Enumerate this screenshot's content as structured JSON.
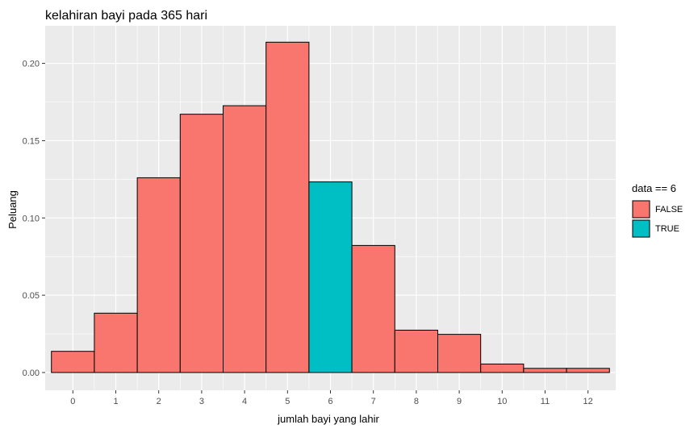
{
  "chart_data": {
    "type": "bar",
    "title": "kelahiran bayi pada 365 hari",
    "xlabel": "jumlah bayi yang lahir",
    "ylabel": "Peluang",
    "categories": [
      "0",
      "1",
      "2",
      "3",
      "4",
      "5",
      "6",
      "7",
      "8",
      "9",
      "10",
      "11",
      "12"
    ],
    "values": [
      0.0137,
      0.0384,
      0.126,
      0.1671,
      0.1726,
      0.2137,
      0.1233,
      0.0822,
      0.0274,
      0.0247,
      0.0055,
      0.0027,
      0.0027
    ],
    "highlight": [
      false,
      false,
      false,
      false,
      false,
      false,
      true,
      false,
      false,
      false,
      false,
      false,
      false
    ],
    "ylim": [
      -0.0115,
      0.2243
    ],
    "yticks": [
      "0.00",
      "0.05",
      "0.10",
      "0.15",
      "0.20"
    ],
    "ytick_values": [
      0,
      0.05,
      0.1,
      0.15,
      0.2
    ],
    "grid": true,
    "legend": {
      "title": "data == 6",
      "position": "right",
      "items": [
        {
          "label": "FALSE",
          "color": "#F8766D"
        },
        {
          "label": "TRUE",
          "color": "#00BFC4"
        }
      ]
    },
    "colors": {
      "panel": "#EBEBEB",
      "grid": "#FFFFFF",
      "bar_outline": "#000000"
    }
  }
}
